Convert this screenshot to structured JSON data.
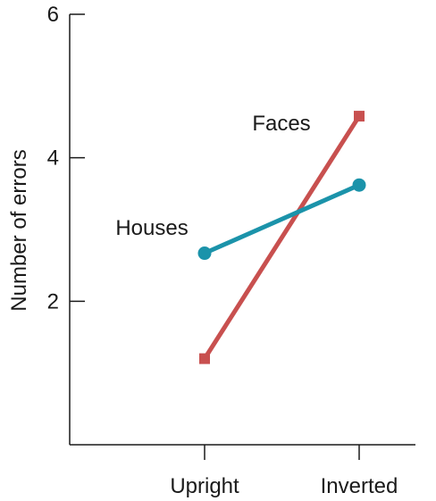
{
  "chart_data": {
    "type": "line",
    "categories": [
      "Upright",
      "Inverted"
    ],
    "ylabel": "Number of errors",
    "ylim": [
      0,
      6
    ],
    "yticks": [
      2,
      4,
      6
    ],
    "grid": false,
    "series": [
      {
        "name": "Faces",
        "values": [
          1.2,
          4.58
        ],
        "color": "#c8504f",
        "marker": "square"
      },
      {
        "name": "Houses",
        "values": [
          2.67,
          3.62
        ],
        "color": "#1b93aa",
        "marker": "circle"
      }
    ]
  }
}
